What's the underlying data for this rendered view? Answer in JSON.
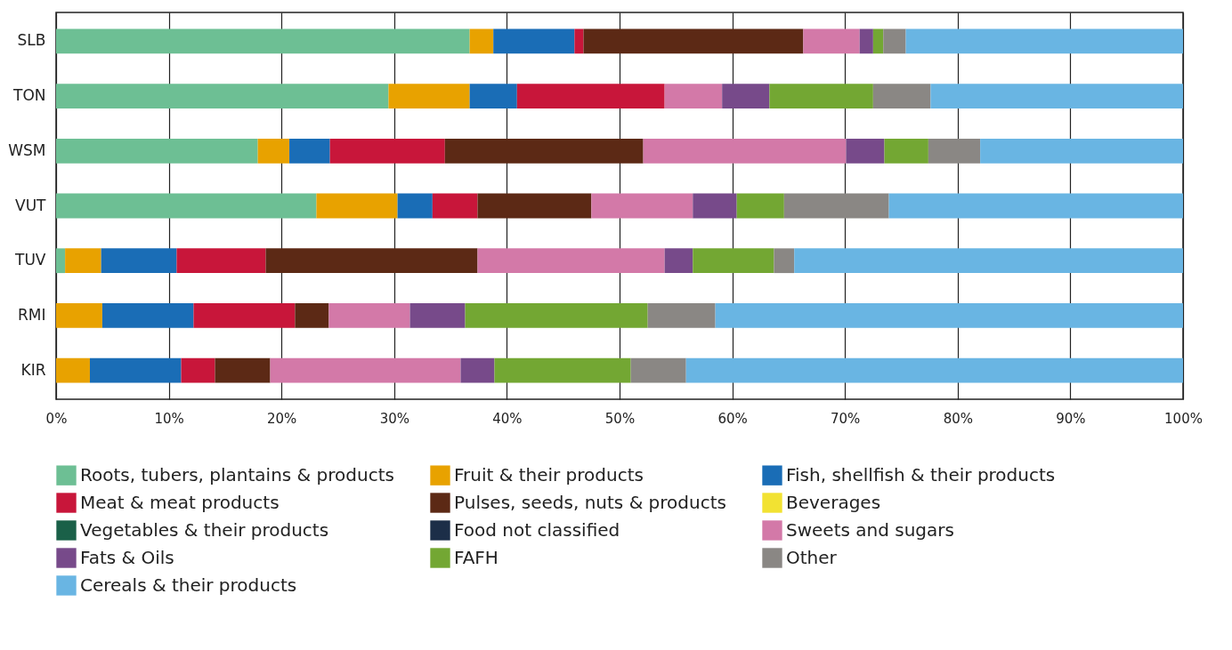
{
  "chart_data": {
    "type": "bar",
    "orientation": "horizontal",
    "stacked": true,
    "categories": [
      "SLB",
      "TON",
      "WSM",
      "VUT",
      "TUV",
      "RMI",
      "KIR"
    ],
    "series": [
      {
        "name": "Roots, tubers, plantains & products",
        "color": "#6dbf94",
        "values": [
          36.7,
          29.5,
          17.9,
          23.1,
          0.8,
          0,
          0
        ]
      },
      {
        "name": "Fruit & their products",
        "color": "#e8a200",
        "values": [
          2.1,
          7.2,
          2.8,
          7.2,
          3.2,
          4.1,
          3.0
        ]
      },
      {
        "name": "Fish, shellfish & their products",
        "color": "#1a6db6",
        "values": [
          7.2,
          4.2,
          3.6,
          3.1,
          6.7,
          8.1,
          8.1
        ]
      },
      {
        "name": "Meat & meat products",
        "color": "#c8163a",
        "values": [
          0.8,
          13.1,
          10.2,
          4.0,
          7.9,
          9.0,
          3.0
        ]
      },
      {
        "name": "Pulses, seeds, nuts & products",
        "color": "#5c2915",
        "values": [
          19.5,
          0,
          17.6,
          10.1,
          18.8,
          3.0,
          4.9
        ]
      },
      {
        "name": "Beverages",
        "color": "#f2e232",
        "values": [
          0,
          0,
          0,
          0,
          0,
          0,
          0
        ]
      },
      {
        "name": "Vegetables & their products",
        "color": "#1a6048",
        "values": [
          0,
          0,
          0,
          0,
          0,
          0,
          0
        ]
      },
      {
        "name": "Food not classified",
        "color": "#1c2e48",
        "values": [
          0,
          0,
          0,
          0,
          0,
          0,
          0
        ]
      },
      {
        "name": "Sweets and sugars",
        "color": "#d379a8",
        "values": [
          5.0,
          5.1,
          18.0,
          9.0,
          16.6,
          7.2,
          16.9
        ]
      },
      {
        "name": "Fats & Oils",
        "color": "#774a8a",
        "values": [
          1.2,
          4.2,
          3.4,
          3.9,
          2.5,
          4.9,
          3.0
        ]
      },
      {
        "name": "FAFH",
        "color": "#73a733",
        "values": [
          0.9,
          9.2,
          3.9,
          4.2,
          7.2,
          16.2,
          12.1
        ]
      },
      {
        "name": "Other",
        "color": "#8a8784",
        "values": [
          2.0,
          5.1,
          4.6,
          9.3,
          1.8,
          6.0,
          4.9
        ]
      },
      {
        "name": "Cereals & their products",
        "color": "#69b5e3",
        "values": [
          24.6,
          22.4,
          18.0,
          26.1,
          34.5,
          41.5,
          44.1
        ]
      }
    ],
    "xlim": [
      0,
      100
    ],
    "xticks": [
      {
        "value": 0,
        "label": "0%"
      },
      {
        "value": 10,
        "label": "10%"
      },
      {
        "value": 20,
        "label": "20%"
      },
      {
        "value": 30,
        "label": "30%"
      },
      {
        "value": 40,
        "label": "40%"
      },
      {
        "value": 50,
        "label": "50%"
      },
      {
        "value": 60,
        "label": "60%"
      },
      {
        "value": 70,
        "label": "70%"
      },
      {
        "value": 80,
        "label": "80%"
      },
      {
        "value": 90,
        "label": "90%"
      },
      {
        "value": 100,
        "label": "100%"
      }
    ],
    "grid": "x",
    "legend": "bottom"
  }
}
